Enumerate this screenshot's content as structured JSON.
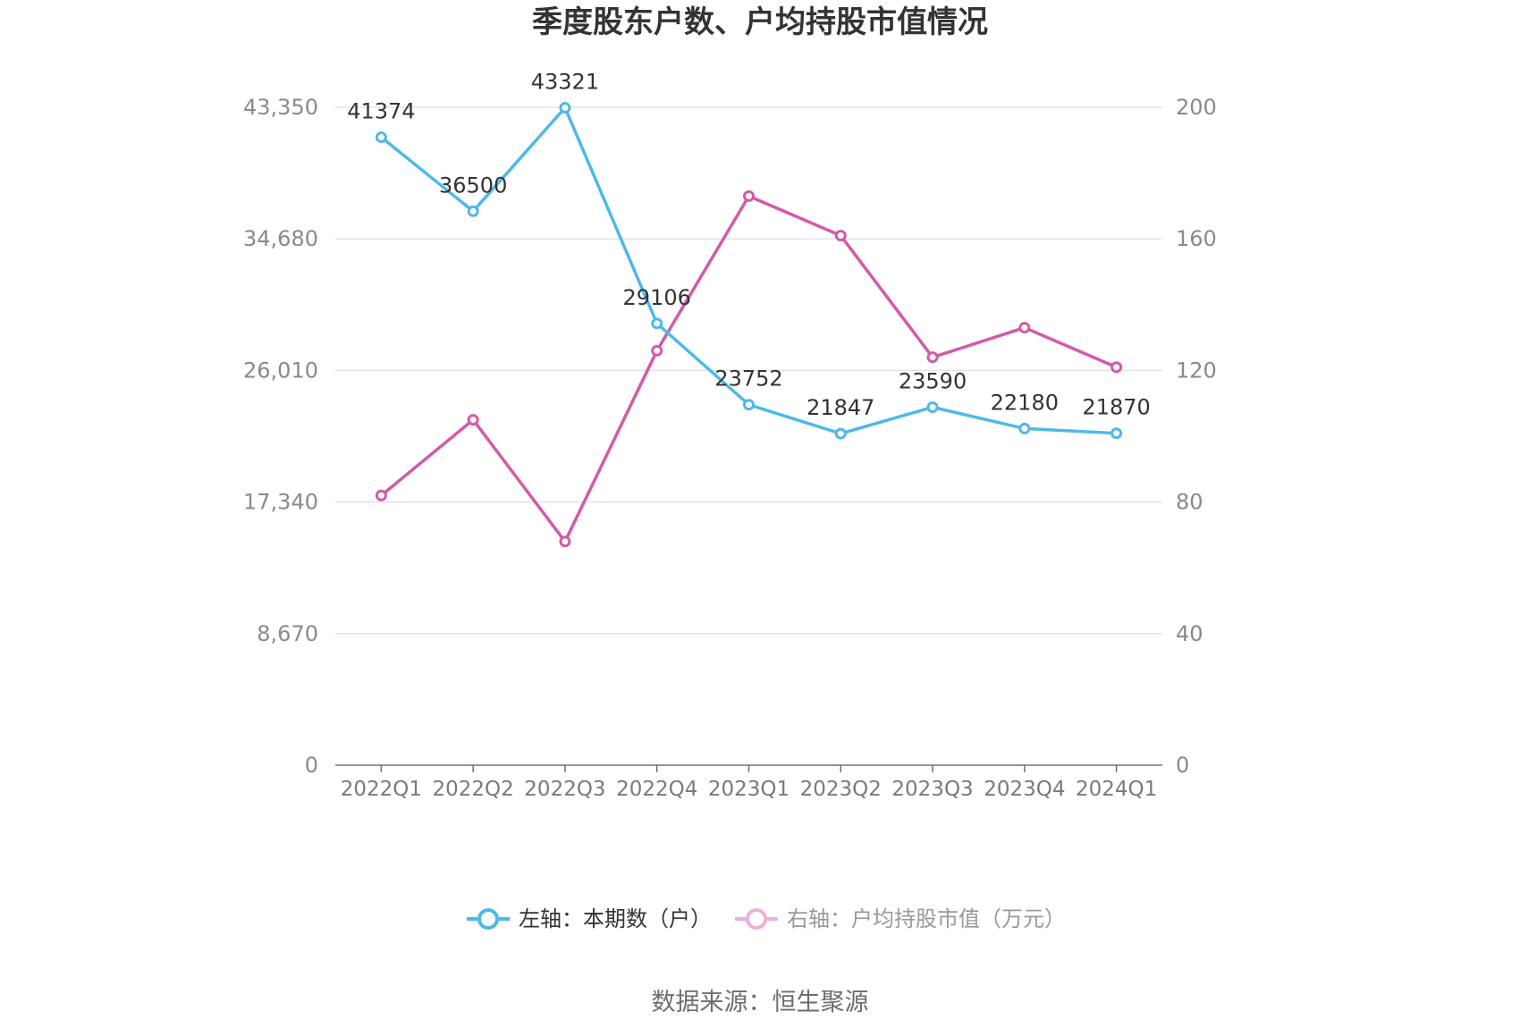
{
  "chart_data": {
    "type": "line",
    "title": "季度股东户数、户均持股市值情况",
    "categories": [
      "2022Q1",
      "2022Q2",
      "2022Q3",
      "2022Q4",
      "2023Q1",
      "2023Q2",
      "2023Q3",
      "2023Q4",
      "2024Q1"
    ],
    "left_axis": {
      "ticks": [
        "0",
        "8,670",
        "17,340",
        "26,010",
        "34,680",
        "43,350"
      ],
      "ylim": [
        0,
        43350
      ]
    },
    "right_axis": {
      "ticks": [
        "0",
        "40",
        "80",
        "120",
        "160",
        "200"
      ],
      "ylim": [
        0,
        200
      ]
    },
    "grid": true,
    "legend_position": "bottom",
    "series": [
      {
        "name": "左轴：本期数（户）",
        "axis": "left",
        "color": "#4fb8ea",
        "values": [
          41374,
          36500,
          43321,
          29106,
          23752,
          21847,
          23590,
          22180,
          21870
        ],
        "labels": [
          "41374",
          "36500",
          "43321",
          "29106",
          "23752",
          "21847",
          "23590",
          "22180",
          "21870"
        ]
      },
      {
        "name": "右轴：户均持股市值（万元）",
        "axis": "right",
        "color": "#d45aa8",
        "values": [
          82,
          105,
          68,
          126,
          173,
          161,
          124,
          133,
          121
        ]
      }
    ],
    "source": "数据来源：恒生聚源"
  }
}
